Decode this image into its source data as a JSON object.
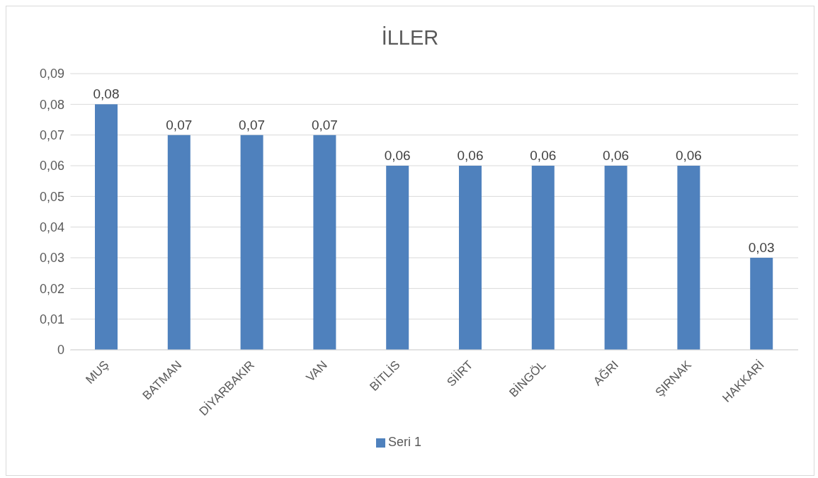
{
  "chart_data": {
    "type": "bar",
    "title": "İLLER",
    "categories": [
      "MUŞ",
      "BATMAN",
      "DİYARBAKIR",
      "VAN",
      "BİTLİS",
      "SİİRT",
      "BİNGÖL",
      "AĞRI",
      "ŞIRNAK",
      "HAKKARİ"
    ],
    "series": [
      {
        "name": "Seri 1",
        "color": "#4f81bd",
        "values": [
          0.08,
          0.07,
          0.07,
          0.07,
          0.06,
          0.06,
          0.06,
          0.06,
          0.06,
          0.03
        ],
        "value_labels": [
          "0,08",
          "0,07",
          "0,07",
          "0,07",
          "0,06",
          "0,06",
          "0,06",
          "0,06",
          "0,06",
          "0,03"
        ]
      }
    ],
    "ylim": [
      0,
      0.09
    ],
    "yticks": [
      0,
      {
        "value": 0.01,
        "label": "0,01"
      },
      {
        "value": 0.02,
        "label": "0,02"
      },
      {
        "value": 0.03,
        "label": "0,03"
      },
      {
        "value": 0.04,
        "label": "0,04"
      },
      {
        "value": 0.05,
        "label": "0,05"
      },
      {
        "value": 0.06,
        "label": "0,06"
      },
      {
        "value": 0.07,
        "label": "0,07"
      },
      {
        "value": 0.08,
        "label": "0,08"
      },
      {
        "value": 0.09,
        "label": "0,09"
      }
    ],
    "grid": "y",
    "legend": "bottom"
  }
}
